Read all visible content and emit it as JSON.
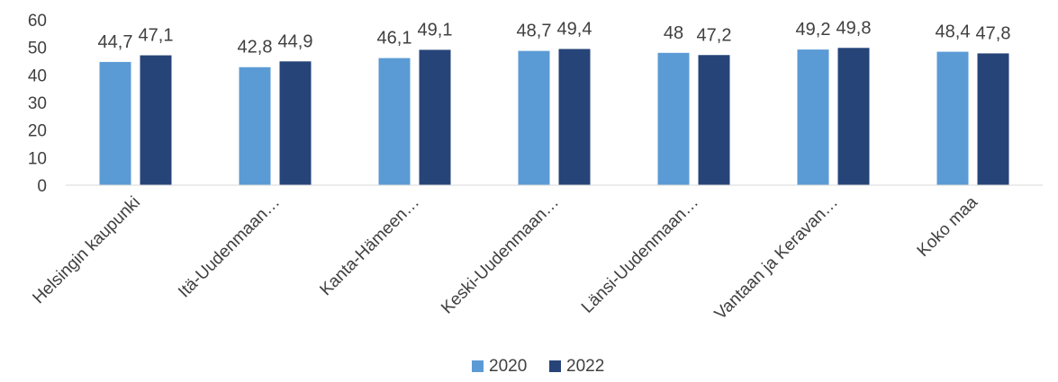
{
  "chart_data": {
    "type": "bar",
    "title": "",
    "xlabel": "",
    "ylabel": "",
    "ylim": [
      0,
      60
    ],
    "yticks": [
      0,
      10,
      20,
      30,
      40,
      50,
      60
    ],
    "grid": false,
    "legend_position": "bottom",
    "categories": [
      "Helsingin kaupunki",
      "Itä-Uudenmaan…",
      "Kanta-Hämeen…",
      "Keski-Uudenmaan…",
      "Länsi-Uudenmaan…",
      "Vantaan ja Keravan…",
      "Koko maa"
    ],
    "series": [
      {
        "name": "2020",
        "color": "#5b9bd5",
        "values": [
          44.7,
          42.8,
          46.1,
          48.7,
          48,
          49.2,
          48.4
        ],
        "labels": [
          "44,7",
          "42,8",
          "46,1",
          "48,7",
          "48",
          "49,2",
          "48,4"
        ]
      },
      {
        "name": "2022",
        "color": "#264478",
        "values": [
          47.1,
          44.9,
          49.1,
          49.4,
          47.2,
          49.8,
          47.8
        ],
        "labels": [
          "47,1",
          "44,9",
          "49,1",
          "49,4",
          "47,2",
          "49,8",
          "47,8"
        ]
      }
    ]
  }
}
